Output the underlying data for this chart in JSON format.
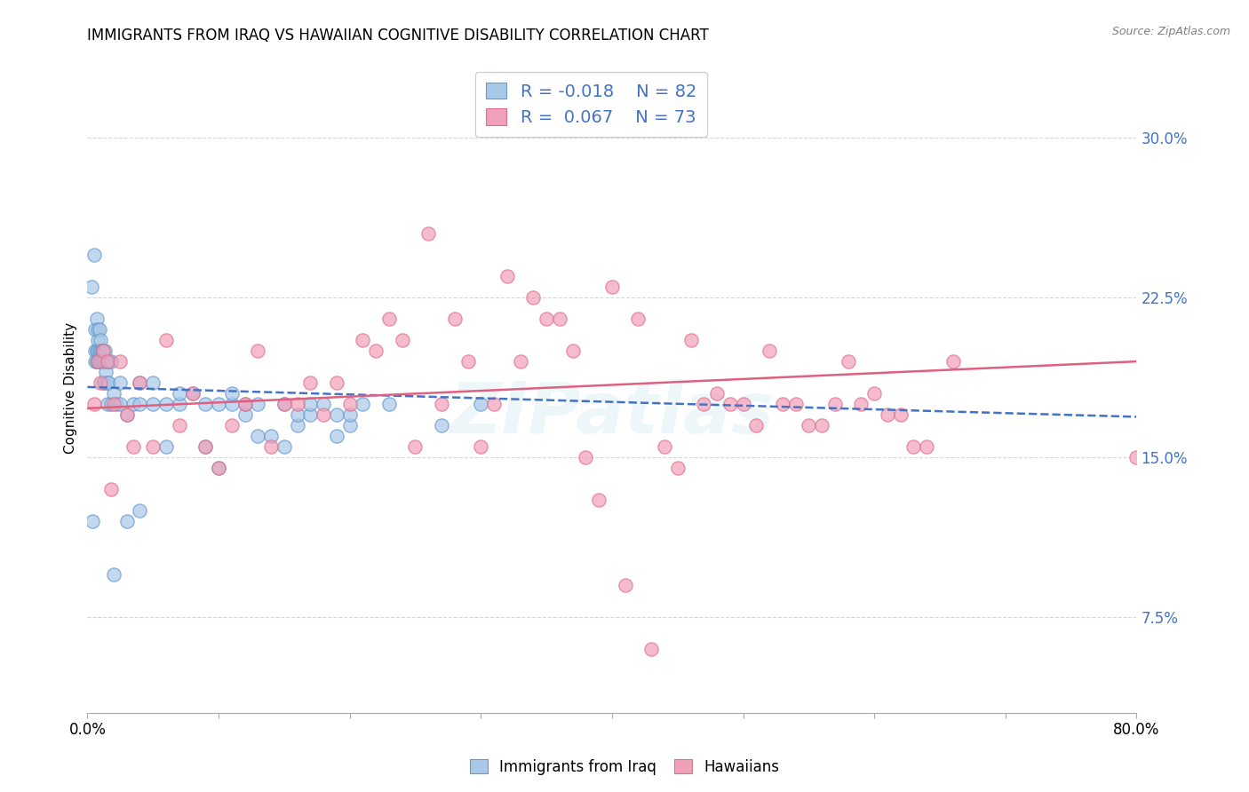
{
  "title": "IMMIGRANTS FROM IRAQ VS HAWAIIAN COGNITIVE DISABILITY CORRELATION CHART",
  "source": "Source: ZipAtlas.com",
  "ylabel": "Cognitive Disability",
  "yticks": [
    "7.5%",
    "15.0%",
    "22.5%",
    "30.0%"
  ],
  "ytick_values": [
    0.075,
    0.15,
    0.225,
    0.3
  ],
  "xlim": [
    0.0,
    0.8
  ],
  "ylim": [
    0.03,
    0.335
  ],
  "legend_r1": "R = -0.018",
  "legend_n1": "N = 82",
  "legend_r2": "R =  0.067",
  "legend_n2": "N = 73",
  "color_blue_fill": "#A8C8E8",
  "color_blue_edge": "#6699CC",
  "color_pink_fill": "#F0A0B8",
  "color_pink_edge": "#E07090",
  "color_blue_text": "#4472C4",
  "color_pink_line": "#E06080",
  "color_blue_line": "#4472C4",
  "watermark": "ZIPatlas",
  "blue_scatter_x": [
    0.003,
    0.005,
    0.006,
    0.006,
    0.006,
    0.007,
    0.007,
    0.007,
    0.008,
    0.008,
    0.008,
    0.008,
    0.009,
    0.009,
    0.009,
    0.009,
    0.01,
    0.01,
    0.01,
    0.011,
    0.011,
    0.011,
    0.012,
    0.012,
    0.012,
    0.013,
    0.013,
    0.013,
    0.014,
    0.014,
    0.015,
    0.015,
    0.015,
    0.016,
    0.016,
    0.018,
    0.018,
    0.02,
    0.022,
    0.025,
    0.025,
    0.03,
    0.035,
    0.04,
    0.04,
    0.05,
    0.05,
    0.06,
    0.06,
    0.07,
    0.07,
    0.08,
    0.09,
    0.09,
    0.1,
    0.1,
    0.11,
    0.11,
    0.12,
    0.12,
    0.13,
    0.13,
    0.14,
    0.15,
    0.15,
    0.16,
    0.16,
    0.17,
    0.17,
    0.18,
    0.19,
    0.19,
    0.2,
    0.2,
    0.21,
    0.23,
    0.27,
    0.3,
    0.004,
    0.02,
    0.03,
    0.04
  ],
  "blue_scatter_y": [
    0.23,
    0.245,
    0.2,
    0.195,
    0.21,
    0.215,
    0.2,
    0.195,
    0.205,
    0.195,
    0.21,
    0.2,
    0.2,
    0.195,
    0.21,
    0.195,
    0.2,
    0.195,
    0.205,
    0.2,
    0.195,
    0.2,
    0.185,
    0.195,
    0.2,
    0.185,
    0.195,
    0.2,
    0.19,
    0.195,
    0.185,
    0.195,
    0.175,
    0.185,
    0.195,
    0.175,
    0.195,
    0.18,
    0.175,
    0.175,
    0.185,
    0.17,
    0.175,
    0.175,
    0.185,
    0.185,
    0.175,
    0.175,
    0.155,
    0.175,
    0.18,
    0.18,
    0.155,
    0.175,
    0.175,
    0.145,
    0.175,
    0.18,
    0.17,
    0.175,
    0.175,
    0.16,
    0.16,
    0.175,
    0.155,
    0.165,
    0.17,
    0.17,
    0.175,
    0.175,
    0.16,
    0.17,
    0.165,
    0.17,
    0.175,
    0.175,
    0.165,
    0.175,
    0.12,
    0.095,
    0.12,
    0.125
  ],
  "pink_scatter_x": [
    0.005,
    0.008,
    0.01,
    0.012,
    0.015,
    0.018,
    0.02,
    0.025,
    0.03,
    0.035,
    0.04,
    0.05,
    0.06,
    0.07,
    0.08,
    0.09,
    0.1,
    0.11,
    0.12,
    0.13,
    0.14,
    0.15,
    0.16,
    0.17,
    0.18,
    0.19,
    0.2,
    0.21,
    0.22,
    0.23,
    0.24,
    0.25,
    0.26,
    0.27,
    0.28,
    0.29,
    0.3,
    0.31,
    0.32,
    0.33,
    0.34,
    0.35,
    0.36,
    0.37,
    0.38,
    0.39,
    0.4,
    0.41,
    0.42,
    0.43,
    0.44,
    0.45,
    0.46,
    0.47,
    0.48,
    0.49,
    0.5,
    0.51,
    0.52,
    0.53,
    0.54,
    0.55,
    0.56,
    0.57,
    0.58,
    0.59,
    0.6,
    0.61,
    0.62,
    0.63,
    0.64,
    0.66,
    0.8
  ],
  "pink_scatter_y": [
    0.175,
    0.195,
    0.185,
    0.2,
    0.195,
    0.135,
    0.175,
    0.195,
    0.17,
    0.155,
    0.185,
    0.155,
    0.205,
    0.165,
    0.18,
    0.155,
    0.145,
    0.165,
    0.175,
    0.2,
    0.155,
    0.175,
    0.175,
    0.185,
    0.17,
    0.185,
    0.175,
    0.205,
    0.2,
    0.215,
    0.205,
    0.155,
    0.255,
    0.175,
    0.215,
    0.195,
    0.155,
    0.175,
    0.235,
    0.195,
    0.225,
    0.215,
    0.215,
    0.2,
    0.15,
    0.13,
    0.23,
    0.09,
    0.215,
    0.06,
    0.155,
    0.145,
    0.205,
    0.175,
    0.18,
    0.175,
    0.175,
    0.165,
    0.2,
    0.175,
    0.175,
    0.165,
    0.165,
    0.175,
    0.195,
    0.175,
    0.18,
    0.17,
    0.17,
    0.155,
    0.155,
    0.195,
    0.15
  ],
  "blue_trend_x": [
    0.0,
    0.8
  ],
  "blue_trend_y": [
    0.183,
    0.169
  ],
  "pink_trend_x": [
    0.0,
    0.8
  ],
  "pink_trend_y": [
    0.173,
    0.195
  ],
  "grid_color": "#CCCCCC",
  "background_color": "#FFFFFF",
  "title_fontsize": 12,
  "axis_fontsize": 11,
  "tick_fontsize": 12
}
